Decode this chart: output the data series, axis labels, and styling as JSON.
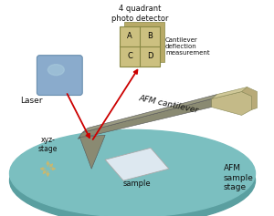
{
  "bg_color": "#ffffff",
  "stage_color": "#7bbfc0",
  "stage_rim_color": "#5a9fa0",
  "cantilever_color": "#8a8a72",
  "cantilever_top_color": "#9a9a82",
  "holder_side_color": "#b8aa78",
  "holder_top_color": "#d0c898",
  "holder_front_color": "#c4ba88",
  "laser_color": "#8aabcc",
  "laser_highlight": "#aaccdd",
  "sample_color": "#dde8f0",
  "sample_edge": "#aaaaaa",
  "arrow_color": "#cc0000",
  "text_color": "#111111",
  "xyz_arrow_color": "#c8b870",
  "det_back_color": "#b8aa68",
  "det_face_color": "#ccc080",
  "det_line_color": "#888844",
  "labels": {
    "laser": "Laser",
    "detector": "4 quadrant\nphoto detector",
    "cantilever": "AFM cantilever",
    "sample": "sample",
    "sample_stage": "AFM\nsample\nstage",
    "xyz": "xyz-\nstage",
    "cantilever_deflection": "Cantilever\ndeflection\nmeasurement",
    "quad_A": "A",
    "quad_B": "B",
    "quad_C": "C",
    "quad_D": "D"
  }
}
